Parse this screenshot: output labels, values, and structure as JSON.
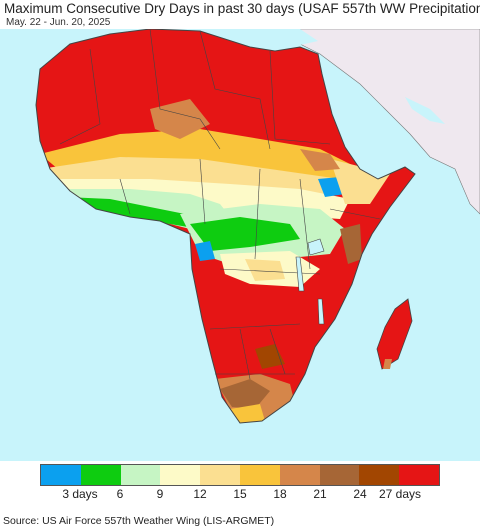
{
  "header": {
    "title": "Maximum Consecutive Dry Days in past 30 days (USAF 557th WW Precipitation)",
    "date_range": "May. 22 - Jun. 20, 2025"
  },
  "map": {
    "ocean_color": "#c8f4fb",
    "land_no_data_color": "#efe8ef",
    "border_color": "#555555"
  },
  "legend": {
    "swatches": [
      {
        "color": "#0ba0ef"
      },
      {
        "color": "#0ecc10"
      },
      {
        "color": "#c6f5c4"
      },
      {
        "color": "#fdfac8"
      },
      {
        "color": "#fbdf91"
      },
      {
        "color": "#f9c43b"
      },
      {
        "color": "#d5864a"
      },
      {
        "color": "#a66636"
      },
      {
        "color": "#a24601"
      },
      {
        "color": "#e51515"
      }
    ],
    "labels": [
      "3 days",
      "6",
      "9",
      "12",
      "15",
      "18",
      "21",
      "24",
      "27 days"
    ]
  },
  "footer": {
    "source": "Source: US Air Force 557th Weather Wing (LIS-ARGMET)"
  }
}
